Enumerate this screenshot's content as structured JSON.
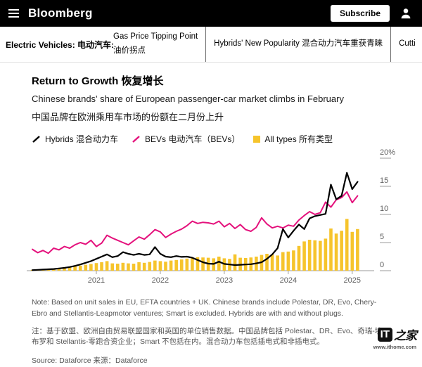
{
  "header": {
    "brand": "Bloomberg",
    "subscribe_label": "Subscribe"
  },
  "subnav": {
    "section_label": "Electric Vehicles: 电动汽车:",
    "items": [
      {
        "line1": "Gas Price Tipping Point",
        "line2": "油价拐点"
      },
      {
        "line1": "Hybrids' New Popularity 混合动力汽车重获青睐"
      },
      {
        "line1": "Cutti"
      }
    ]
  },
  "article": {
    "title": "Return to Growth 恢复增长",
    "subtitle_en": "Chinese brands' share of European passenger-car market climbs in February",
    "subtitle_zh": "中国品牌在欧洲乘用车市场的份额在二月份上升"
  },
  "notes": {
    "note_en": "Note: Based on unit sales in EU, EFTA countries + UK. Chinese brands include Polestar, DR, Evo, Chery-Ebro and Stellantis-Leapmotor ventures; Smart is excluded. Hybrids are with and without plugs.",
    "note_zh": "注：基于欧盟、欧洲自由贸易联盟国家和英国的单位销售数据。中国品牌包括 Polestar、DR、Evo、奇瑞-埃布罗和 Stellantis-零跑合资企业；Smart 不包括在内。混合动力车包括插电式和非插电式。",
    "source": "Source: Dataforce 来源：Dataforce"
  },
  "watermark": {
    "logo_it": "IT",
    "logo_zhijia": "之家",
    "url": "www.ithome.com"
  },
  "chart_data": {
    "type": "combo",
    "unit": "%",
    "title": "Return to Growth 恢复增长",
    "x_monthly_start": "2020-01",
    "x_monthly_end": "2025-02",
    "year_ticks": [
      "2021",
      "2022",
      "2023",
      "2024",
      "2025"
    ],
    "year_tick_month_index": [
      12,
      24,
      36,
      48,
      60
    ],
    "ylim": [
      0,
      20
    ],
    "yticks": [
      0,
      5,
      10,
      15,
      20
    ],
    "ytick_labels": [
      "0",
      "5",
      "10",
      "15",
      "20%"
    ],
    "grid": false,
    "legend_position": "top",
    "series": [
      {
        "name": "Hybrids 混合动力车",
        "type": "line",
        "color": "#000000",
        "values": [
          0.1,
          0.15,
          0.2,
          0.25,
          0.3,
          0.4,
          0.5,
          0.65,
          0.85,
          1.1,
          1.4,
          1.7,
          2.1,
          2.5,
          2.9,
          2.4,
          2.6,
          3.3,
          3.0,
          2.8,
          3.0,
          2.8,
          2.9,
          4.2,
          3.0,
          2.5,
          2.4,
          2.6,
          2.45,
          2.5,
          2.3,
          1.9,
          1.5,
          1.25,
          1.2,
          1.6,
          1.2,
          1.1,
          1.0,
          1.05,
          1.1,
          1.15,
          1.3,
          1.5,
          2.1,
          2.9,
          4.0,
          7.4,
          5.9,
          7.1,
          8.2,
          7.4,
          9.3,
          9.7,
          9.9,
          10.1,
          15.3,
          12.7,
          13.3,
          17.4,
          14.5,
          15.8
        ]
      },
      {
        "name": "BEVs 电动汽车（BEVs）",
        "type": "line",
        "color": "#e4117c",
        "values": [
          3.8,
          3.2,
          3.6,
          3.1,
          4.0,
          3.7,
          4.3,
          4.0,
          4.6,
          5.0,
          4.7,
          5.4,
          4.3,
          4.9,
          6.3,
          5.8,
          5.4,
          5.0,
          4.6,
          5.3,
          6.0,
          5.6,
          6.4,
          7.3,
          6.9,
          5.9,
          6.5,
          7.0,
          7.4,
          8.0,
          8.8,
          8.4,
          8.6,
          8.5,
          8.3,
          8.8,
          7.8,
          8.4,
          7.5,
          8.2,
          7.3,
          7.0,
          7.7,
          9.4,
          8.3,
          7.6,
          7.9,
          7.6,
          8.1,
          7.9,
          9.0,
          9.8,
          10.5,
          10.0,
          10.3,
          12.2,
          11.3,
          12.6,
          13.0,
          14.0,
          12.1,
          13.3
        ]
      },
      {
        "name": "All types 所有类型",
        "type": "bar",
        "color": "#f6c42c",
        "values": [
          0.15,
          0.2,
          0.25,
          0.3,
          0.35,
          0.4,
          0.5,
          0.6,
          0.75,
          0.9,
          1.05,
          1.2,
          1.35,
          1.5,
          1.7,
          1.3,
          1.25,
          1.4,
          1.3,
          1.25,
          1.5,
          1.4,
          1.55,
          1.8,
          1.7,
          1.6,
          1.8,
          1.9,
          2.0,
          2.15,
          2.3,
          2.4,
          2.35,
          2.3,
          2.2,
          2.5,
          2.2,
          2.1,
          2.9,
          2.3,
          2.25,
          2.35,
          2.5,
          2.8,
          3.0,
          2.9,
          2.7,
          3.3,
          3.4,
          3.6,
          4.4,
          5.2,
          5.5,
          5.4,
          5.3,
          5.7,
          7.5,
          6.6,
          7.1,
          9.2,
          6.9,
          7.4
        ]
      }
    ],
    "axis_color": "#9b9b9b",
    "tick_label_color": "#5f5f5f"
  }
}
